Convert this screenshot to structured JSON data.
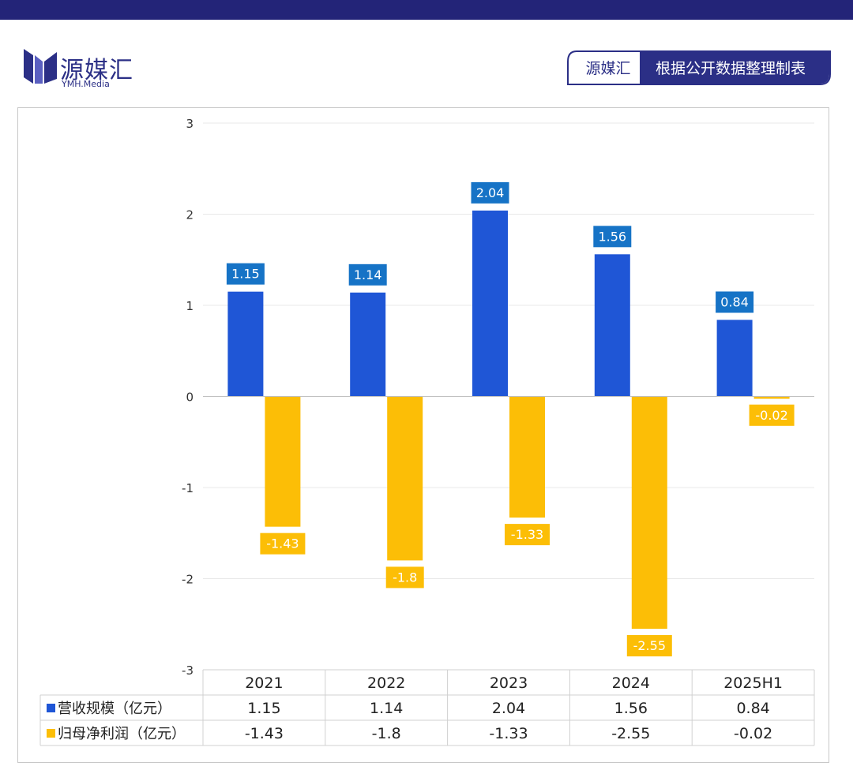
{
  "header": {
    "brand_cn": "源媒汇",
    "brand_en": "YMH.Media",
    "source_brand": "源媒汇",
    "source_text": "根据公开数据整理制表",
    "brand_color": "#232478"
  },
  "chart_data": {
    "type": "bar",
    "title": "",
    "xlabel": "",
    "ylabel": "",
    "categories": [
      "2021",
      "2022",
      "2023",
      "2024",
      "2025H1"
    ],
    "ylim": [
      -3,
      3
    ],
    "yticks": [
      3,
      2,
      1,
      0,
      -1,
      -2,
      -3
    ],
    "grid": true,
    "legend": "data-table",
    "series": [
      {
        "name": "营收规模（亿元）",
        "values": [
          1.15,
          1.14,
          2.04,
          1.56,
          0.84
        ],
        "value_labels": [
          "1.15",
          "1.14",
          "2.04",
          "1.56",
          "0.84"
        ],
        "color": "#1f56d6",
        "label_color": "#1673c6"
      },
      {
        "name": "归母净利润（亿元）",
        "values": [
          -1.43,
          -1.8,
          -1.33,
          -2.55,
          -0.02
        ],
        "value_labels": [
          "-1.43",
          "-1.8",
          "-1.33",
          "-2.55",
          "-0.02"
        ],
        "color": "#fcbe06",
        "label_color": "#fcbe06"
      }
    ]
  }
}
